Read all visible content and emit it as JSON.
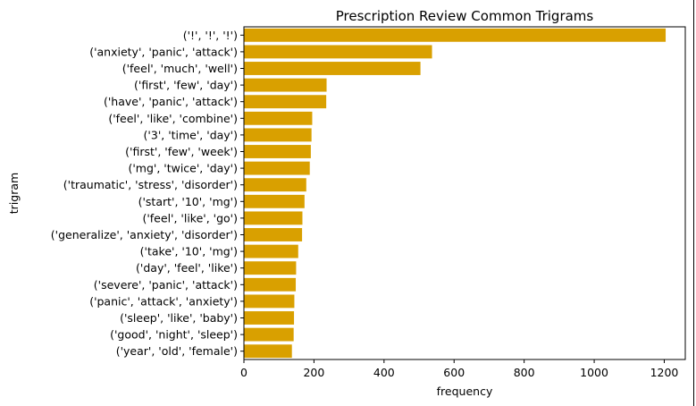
{
  "chart_data": {
    "type": "bar",
    "orientation": "horizontal",
    "title": "Prescription Review Common Trigrams",
    "xlabel": "frequency",
    "ylabel": "trigram",
    "xlim": [
      0,
      1260
    ],
    "xticks": [
      0,
      200,
      400,
      600,
      800,
      1000,
      1200
    ],
    "grid": false,
    "bar_color": "#d9a000",
    "categories": [
      "('!', '!', '!')",
      "('anxiety', 'panic', 'attack')",
      "('feel', 'much', 'well')",
      "('first', 'few', 'day')",
      "('have', 'panic', 'attack')",
      "('feel', 'like', 'combine')",
      "('3', 'time', 'day')",
      "('first', 'few', 'week')",
      "('mg', 'twice', 'day')",
      "('traumatic', 'stress', 'disorder')",
      "('start', '10', 'mg')",
      "('feel', 'like', 'go')",
      "('generalize', 'anxiety', 'disorder')",
      "('take', '10', 'mg')",
      "('day', 'feel', 'like')",
      "('severe', 'panic', 'attack')",
      "('panic', 'attack', 'anxiety')",
      "('sleep', 'like', 'baby')",
      "('good', 'night', 'sleep')",
      "('year', 'old', 'female')"
    ],
    "values": [
      1204,
      537,
      504,
      236,
      235,
      195,
      193,
      191,
      188,
      178,
      173,
      167,
      166,
      155,
      149,
      148,
      144,
      143,
      142,
      137
    ]
  }
}
